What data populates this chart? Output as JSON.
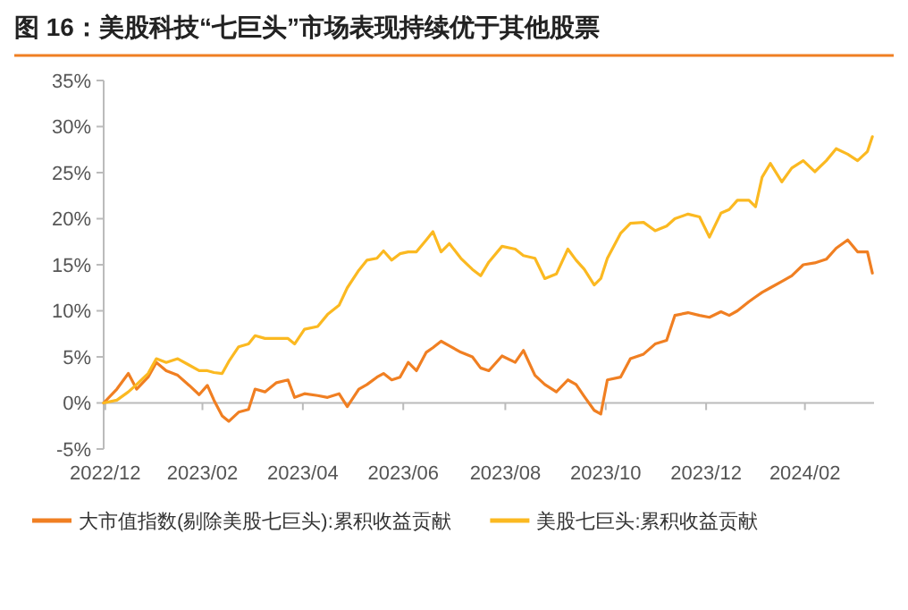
{
  "chart_data": {
    "type": "line",
    "title": "图 16：美股科技“七巨头”市场表现持续优于其他股票",
    "x": [
      "2022-12-30",
      "2023-01-07",
      "2023-01-14",
      "2023-01-19",
      "2023-01-26",
      "2023-01-31",
      "2023-02-06",
      "2023-02-13",
      "2023-02-20",
      "2023-02-26",
      "2023-03-03",
      "2023-03-07",
      "2023-03-12",
      "2023-03-16",
      "2023-03-22",
      "2023-03-28",
      "2023-04-01",
      "2023-04-07",
      "2023-04-14",
      "2023-04-21",
      "2023-04-25",
      "2023-05-01",
      "2023-05-09",
      "2023-05-15",
      "2023-05-22",
      "2023-05-27",
      "2023-06-03",
      "2023-06-08",
      "2023-06-14",
      "2023-06-18",
      "2023-06-23",
      "2023-06-28",
      "2023-07-03",
      "2023-07-08",
      "2023-07-14",
      "2023-07-18",
      "2023-07-23",
      "2023-07-28",
      "2023-08-04",
      "2023-08-11",
      "2023-08-16",
      "2023-08-21",
      "2023-08-29",
      "2023-09-06",
      "2023-09-11",
      "2023-09-18",
      "2023-09-24",
      "2023-10-01",
      "2023-10-08",
      "2023-10-13",
      "2023-10-18",
      "2023-10-24",
      "2023-10-28",
      "2023-11-01",
      "2023-11-09",
      "2023-11-15",
      "2023-11-23",
      "2023-11-30",
      "2023-12-07",
      "2023-12-12",
      "2023-12-20",
      "2023-12-27",
      "2024-01-02",
      "2024-01-09",
      "2024-01-14",
      "2024-01-19",
      "2024-01-26",
      "2024-01-30",
      "2024-02-03",
      "2024-02-08",
      "2024-02-15",
      "2024-02-21",
      "2024-02-28",
      "2024-03-06",
      "2024-03-13",
      "2024-03-19",
      "2024-03-26",
      "2024-04-01",
      "2024-04-07",
      "2024-04-10"
    ],
    "series": [
      {
        "name": "大市值指数(剔除美股七巨头):累积收益贡献",
        "color": "#f07f22",
        "values": [
          0,
          1.5,
          3.2,
          1.5,
          2.8,
          4.4,
          3.5,
          3.0,
          1.9,
          0.9,
          1.9,
          0.3,
          -1.4,
          -2.0,
          -1.0,
          -0.7,
          1.5,
          1.2,
          2.2,
          2.5,
          0.6,
          1.0,
          0.8,
          0.6,
          1.0,
          -0.4,
          1.5,
          2.0,
          2.8,
          3.2,
          2.5,
          2.8,
          4.4,
          3.5,
          5.5,
          6.0,
          6.7,
          6.2,
          5.5,
          5.0,
          3.8,
          3.5,
          5.1,
          4.4,
          5.7,
          3.0,
          2.0,
          1.2,
          2.5,
          2.0,
          0.7,
          -0.8,
          -1.2,
          2.5,
          2.8,
          4.8,
          5.3,
          6.4,
          6.8,
          9.5,
          9.8,
          9.5,
          9.3,
          9.9,
          9.5,
          10.0,
          11.0,
          11.5,
          12.0,
          12.5,
          13.2,
          13.8,
          15.0,
          15.2,
          15.6,
          16.8,
          17.7,
          16.4,
          16.4,
          14.1
        ]
      },
      {
        "name": "美股七巨头:累积收益贡献",
        "color": "#fbb921",
        "values": [
          0,
          0.3,
          1.2,
          2.0,
          3.2,
          4.8,
          4.4,
          4.8,
          4.1,
          3.5,
          3.5,
          3.3,
          3.2,
          4.5,
          6.1,
          6.4,
          7.3,
          7.0,
          7.0,
          7.0,
          6.4,
          8.0,
          8.3,
          9.6,
          10.6,
          12.5,
          14.4,
          15.5,
          15.7,
          16.5,
          15.5,
          16.2,
          16.4,
          16.4,
          17.7,
          18.6,
          16.4,
          17.3,
          15.7,
          14.5,
          13.8,
          15.3,
          17.0,
          16.7,
          16.0,
          15.7,
          13.5,
          14.0,
          16.7,
          15.5,
          14.5,
          12.8,
          13.5,
          15.7,
          18.4,
          19.5,
          19.6,
          18.7,
          19.2,
          20.0,
          20.5,
          20.2,
          18.0,
          20.6,
          21.0,
          22.0,
          22.0,
          21.3,
          24.5,
          26.0,
          24.0,
          25.5,
          26.3,
          25.1,
          26.3,
          27.6,
          27.0,
          26.3,
          27.3,
          28.9
        ]
      }
    ],
    "xlim": [
      "2022-12-30",
      "2024-04-11"
    ],
    "xticks": [
      {
        "value": "2022-12-31",
        "label": "2022/12"
      },
      {
        "value": "2023-02-28",
        "label": "2023/02"
      },
      {
        "value": "2023-04-30",
        "label": "2023/04"
      },
      {
        "value": "2023-06-30",
        "label": "2023/06"
      },
      {
        "value": "2023-08-31",
        "label": "2023/08"
      },
      {
        "value": "2023-10-31",
        "label": "2023/10"
      },
      {
        "value": "2023-12-31",
        "label": "2023/12"
      },
      {
        "value": "2024-02-29",
        "label": "2024/02"
      }
    ],
    "ylim": [
      -5,
      35
    ],
    "yticks": [
      {
        "value": -5,
        "label": "-5%"
      },
      {
        "value": 0,
        "label": "0%"
      },
      {
        "value": 5,
        "label": "5%"
      },
      {
        "value": 10,
        "label": "10%"
      },
      {
        "value": 15,
        "label": "15%"
      },
      {
        "value": 20,
        "label": "20%"
      },
      {
        "value": 25,
        "label": "25%"
      },
      {
        "value": 30,
        "label": "30%"
      },
      {
        "value": 35,
        "label": "35%"
      }
    ],
    "legend": "bottom",
    "line_style": "solid"
  }
}
